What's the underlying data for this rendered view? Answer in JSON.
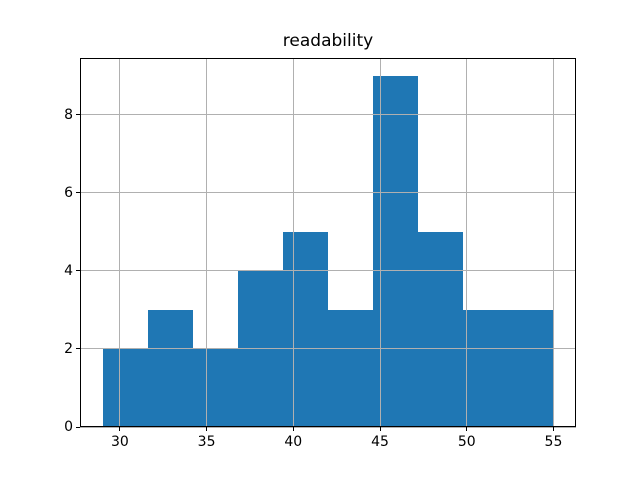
{
  "figure": {
    "title": "readability"
  },
  "chart_data": {
    "type": "bar",
    "subtype": "histogram",
    "title": "readability",
    "xlabel": "",
    "ylabel": "",
    "bin_edges": [
      29.0,
      31.6,
      34.2,
      36.8,
      39.4,
      42.0,
      44.6,
      47.2,
      49.8,
      52.4,
      55.0
    ],
    "values": [
      2,
      3,
      2,
      4,
      5,
      3,
      9,
      5,
      3,
      3
    ],
    "x_ticks": [
      30,
      35,
      40,
      45,
      50,
      55
    ],
    "y_ticks": [
      0,
      2,
      4,
      6,
      8
    ],
    "xlim": [
      27.7,
      56.3
    ],
    "ylim": [
      0,
      9.45
    ],
    "grid": true,
    "legend": "none",
    "bar_color": "#1f77b4",
    "grid_color": "#b0b0b0",
    "axis_color": "#000000",
    "background_color": "#ffffff"
  }
}
